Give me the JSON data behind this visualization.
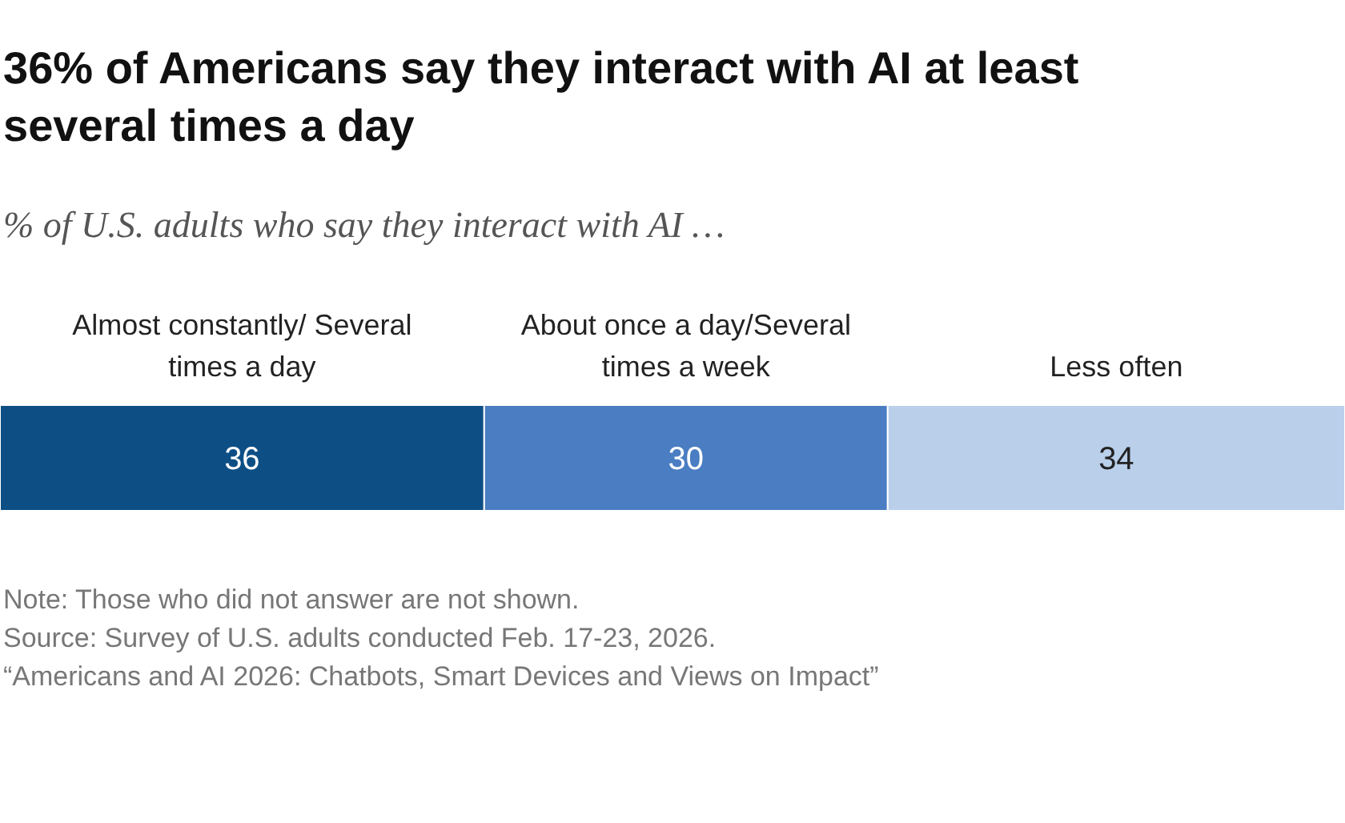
{
  "chart_data": {
    "type": "bar",
    "orientation": "horizontal",
    "stacked": true,
    "title": "36% of Americans say they interact with AI at least several times a day",
    "subtitle": "% of U.S. adults who say they interact with AI …",
    "categories": [
      null
    ],
    "series": [
      {
        "name": "Almost constantly/ Several times a day",
        "color": "#0d4f85",
        "values": [
          36
        ]
      },
      {
        "name": "About once a day/Several times a week",
        "color": "#4a7dc2",
        "values": [
          30
        ]
      },
      {
        "name": "Less often",
        "color": "#b9cfea",
        "values": [
          34
        ]
      }
    ],
    "data_labels": true,
    "xlim": [
      0,
      100
    ],
    "annotations": [
      "Note: Those who did not answer are not shown.",
      "Source: Survey of U.S. adults conducted Feb. 17-23, 2026.",
      "“Americans and AI 2026: Chatbots, Smart Devices and Views on Impact”"
    ]
  }
}
